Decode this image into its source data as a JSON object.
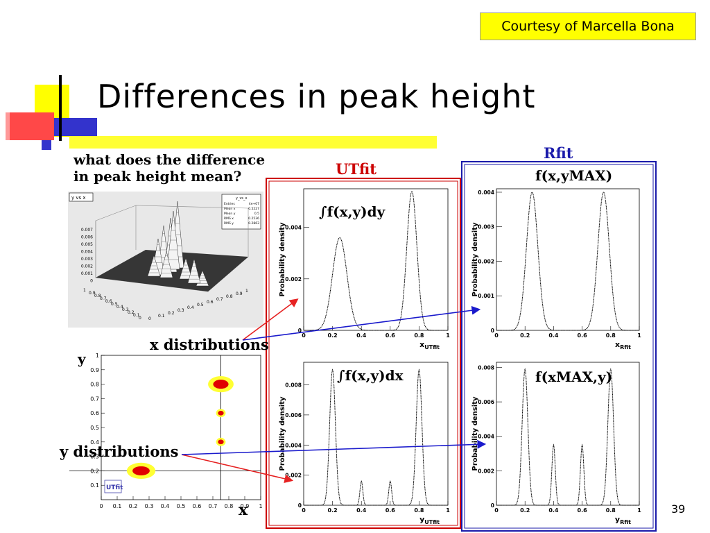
{
  "courtesy": "Courtesy of Marcella Bona",
  "title": "Differences in peak height",
  "question": [
    "what does the difference",
    "in peak height mean?"
  ],
  "utfit_label": "UTfit",
  "rfit_label": "Rfit",
  "x_distributions_label": "x distributions",
  "y_distributions_label": "y distributions",
  "page_number": "39",
  "lego_plot": {
    "tab": "y vs x",
    "stats_title": "y_vs_x",
    "stats": [
      {
        "k": "Entries",
        "v": "4e+07"
      },
      {
        "k": "Mean x",
        "v": "0.5227"
      },
      {
        "k": "Mean y",
        "v": "0.5"
      },
      {
        "k": "RMS x",
        "v": "0.2536"
      },
      {
        "k": "RMS y",
        "v": "0.2863"
      }
    ],
    "z_ticks": [
      "0.007",
      "0.006",
      "0.005",
      "0.004",
      "0.003",
      "0.002",
      "0.001",
      "0"
    ],
    "x_ticks": [
      "0",
      "0.1",
      "0.2",
      "0.3",
      "0.4",
      "0.5",
      "0.6",
      "0.7",
      "0.8",
      "0.9",
      "1"
    ],
    "y_ticks": [
      "1",
      "0.9",
      "0.8",
      "0.7",
      "0.6",
      "0.5",
      "0.4",
      "0.3",
      "0.2",
      "0.1",
      "0"
    ]
  },
  "contour_plot": {
    "x_axis_letter": "x",
    "y_axis_letter": "y",
    "logo": "UTfit",
    "ticks": [
      "0",
      "0.1",
      "0.2",
      "0.3",
      "0.4",
      "0.5",
      "0.6",
      "0.7",
      "0.8",
      "0.9",
      "1"
    ]
  },
  "chart_data": [
    {
      "type": "line",
      "panel": "UTfit x",
      "annotation": "∫f(x,y)dy",
      "ylabel": "Probability density",
      "xlabel": "x",
      "xlabel_sub": "UTfit",
      "xlim": [
        0,
        1
      ],
      "ylim": [
        0,
        0.0055
      ],
      "x_ticks": [
        "0",
        "0.2",
        "0.4",
        "0.6",
        "0.8",
        "1"
      ],
      "y_ticks": [
        {
          "v": 0,
          "t": "0"
        },
        {
          "v": 0.002,
          "t": "0.002"
        },
        {
          "v": 0.004,
          "t": "0.004"
        }
      ],
      "peaks": [
        {
          "mu": 0.25,
          "sigma": 0.05,
          "h": 0.0036
        },
        {
          "mu": 0.75,
          "sigma": 0.035,
          "h": 0.0054
        }
      ]
    },
    {
      "type": "line",
      "panel": "Rfit x",
      "annotation": "f(x,yMAX)",
      "ylabel": "Probability density",
      "xlabel": "x",
      "xlabel_sub": "Rfit",
      "xlim": [
        0,
        1
      ],
      "ylim": [
        0,
        0.0041
      ],
      "x_ticks": [
        "0",
        "0.2",
        "0.4",
        "0.6",
        "0.8",
        "1"
      ],
      "y_ticks": [
        {
          "v": 0,
          "t": "0"
        },
        {
          "v": 0.001,
          "t": "0.001"
        },
        {
          "v": 0.002,
          "t": "0.002"
        },
        {
          "v": 0.003,
          "t": "0.003"
        },
        {
          "v": 0.004,
          "t": "0.004"
        }
      ],
      "peaks": [
        {
          "mu": 0.25,
          "sigma": 0.04,
          "h": 0.004
        },
        {
          "mu": 0.75,
          "sigma": 0.04,
          "h": 0.004
        }
      ]
    },
    {
      "type": "line",
      "panel": "UTfit y",
      "annotation": "∫f(x,y)dx",
      "ylabel": "Probability density",
      "xlabel": "y",
      "xlabel_sub": "UTfit",
      "xlim": [
        0,
        1
      ],
      "ylim": [
        0,
        0.0095
      ],
      "x_ticks": [
        "0",
        "0.2",
        "0.4",
        "0.6",
        "0.8",
        "1"
      ],
      "y_ticks": [
        {
          "v": 0,
          "t": "0"
        },
        {
          "v": 0.002,
          "t": "0.002"
        },
        {
          "v": 0.004,
          "t": "0.004"
        },
        {
          "v": 0.006,
          "t": "0.006"
        },
        {
          "v": 0.008,
          "t": "0.008"
        }
      ],
      "peaks": [
        {
          "mu": 0.2,
          "sigma": 0.02,
          "h": 0.009
        },
        {
          "mu": 0.4,
          "sigma": 0.01,
          "h": 0.0016
        },
        {
          "mu": 0.6,
          "sigma": 0.01,
          "h": 0.0016
        },
        {
          "mu": 0.8,
          "sigma": 0.02,
          "h": 0.009
        }
      ]
    },
    {
      "type": "line",
      "panel": "Rfit y",
      "annotation": "f(xMAX,y)",
      "ylabel": "Probability density",
      "xlabel": "y",
      "xlabel_sub": "Rfit",
      "xlim": [
        0,
        1
      ],
      "ylim": [
        0,
        0.0083
      ],
      "x_ticks": [
        "0",
        "0.2",
        "0.4",
        "0.6",
        "0.8",
        "1"
      ],
      "y_ticks": [
        {
          "v": 0,
          "t": "0"
        },
        {
          "v": 0.002,
          "t": "0.002"
        },
        {
          "v": 0.004,
          "t": "0.004"
        },
        {
          "v": 0.006,
          "t": "0.006"
        },
        {
          "v": 0.008,
          "t": "0.008"
        }
      ],
      "peaks": [
        {
          "mu": 0.2,
          "sigma": 0.02,
          "h": 0.0079
        },
        {
          "mu": 0.4,
          "sigma": 0.012,
          "h": 0.0035
        },
        {
          "mu": 0.6,
          "sigma": 0.012,
          "h": 0.0035
        },
        {
          "mu": 0.8,
          "sigma": 0.02,
          "h": 0.0079
        }
      ]
    },
    {
      "type": "contour",
      "panel": "y vs x",
      "xlim": [
        0,
        1
      ],
      "ylim": [
        0,
        1
      ],
      "blobs": [
        {
          "x": 0.75,
          "y": 0.8,
          "rx": 0.08,
          "ry": 0.035
        },
        {
          "x": 0.75,
          "y": 0.6,
          "rx": 0.03,
          "ry": 0.018
        },
        {
          "x": 0.75,
          "y": 0.4,
          "rx": 0.03,
          "ry": 0.018
        },
        {
          "x": 0.25,
          "y": 0.2,
          "rx": 0.09,
          "ry": 0.035
        }
      ]
    }
  ]
}
